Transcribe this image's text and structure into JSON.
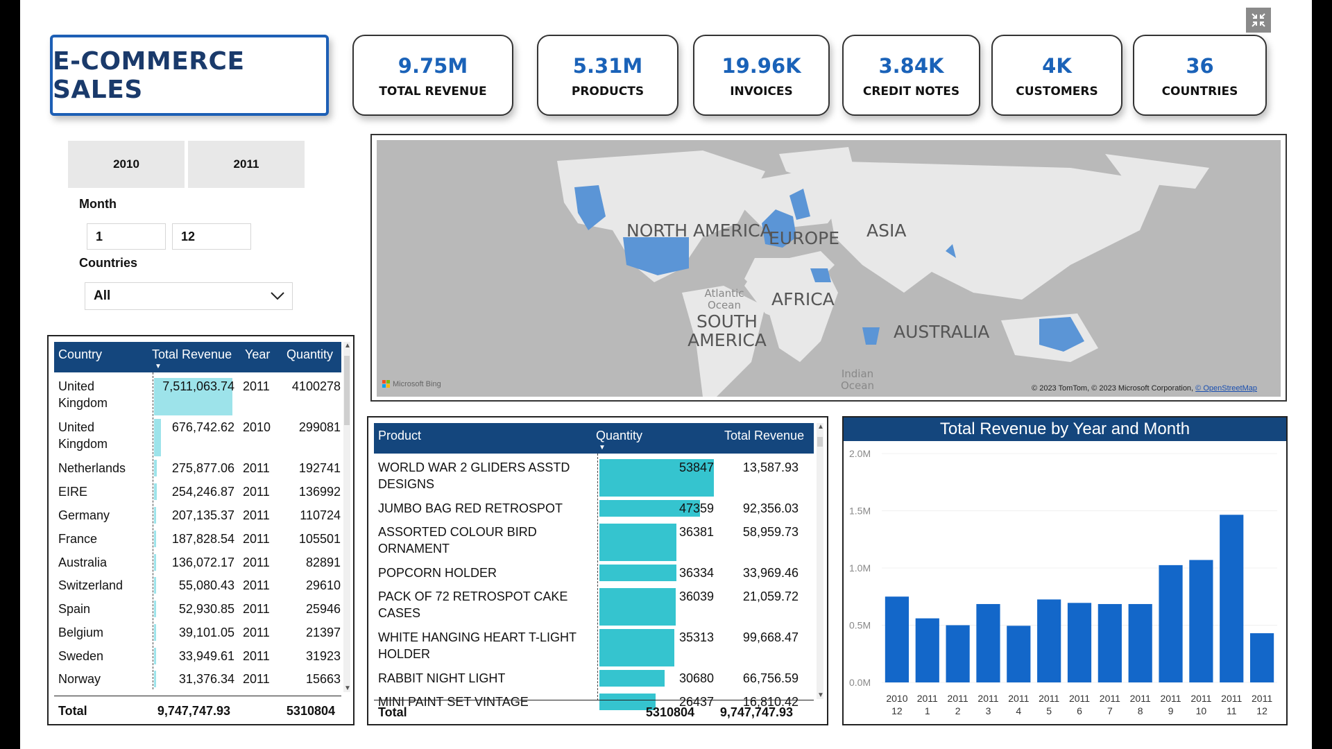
{
  "title": "E-COMMERCE SALES",
  "kpis": [
    {
      "value": "9.75M",
      "label": "TOTAL REVENUE"
    },
    {
      "value": "5.31M",
      "label": "PRODUCTS"
    },
    {
      "value": "19.96K",
      "label": "INVOICES"
    },
    {
      "value": "3.84K",
      "label": "CREDIT NOTES"
    },
    {
      "value": "4K",
      "label": "CUSTOMERS"
    },
    {
      "value": "36",
      "label": "COUNTRIES"
    }
  ],
  "filters": {
    "years": [
      "2010",
      "2011"
    ],
    "month_label": "Month",
    "month_from": "1",
    "month_to": "12",
    "countries_label": "Countries",
    "countries_value": "All"
  },
  "country_table": {
    "headers": [
      "Country",
      "Total Revenue",
      "Year",
      "Quantity"
    ],
    "rows": [
      {
        "country": "United Kingdom",
        "revenue": "7,511,063.74",
        "revenue_num": 7511063.74,
        "year": "2011",
        "quantity": "4100278"
      },
      {
        "country": "United Kingdom",
        "revenue": "676,742.62",
        "revenue_num": 676742.62,
        "year": "2010",
        "quantity": "299081"
      },
      {
        "country": "Netherlands",
        "revenue": "275,877.06",
        "revenue_num": 275877.06,
        "year": "2011",
        "quantity": "192741"
      },
      {
        "country": "EIRE",
        "revenue": "254,246.87",
        "revenue_num": 254246.87,
        "year": "2011",
        "quantity": "136992"
      },
      {
        "country": "Germany",
        "revenue": "207,135.37",
        "revenue_num": 207135.37,
        "year": "2011",
        "quantity": "110724"
      },
      {
        "country": "France",
        "revenue": "187,828.54",
        "revenue_num": 187828.54,
        "year": "2011",
        "quantity": "105501"
      },
      {
        "country": "Australia",
        "revenue": "136,072.17",
        "revenue_num": 136072.17,
        "year": "2011",
        "quantity": "82891"
      },
      {
        "country": "Switzerland",
        "revenue": "55,080.43",
        "revenue_num": 55080.43,
        "year": "2011",
        "quantity": "29610"
      },
      {
        "country": "Spain",
        "revenue": "52,930.85",
        "revenue_num": 52930.85,
        "year": "2011",
        "quantity": "25946"
      },
      {
        "country": "Belgium",
        "revenue": "39,101.05",
        "revenue_num": 39101.05,
        "year": "2011",
        "quantity": "21397"
      },
      {
        "country": "Sweden",
        "revenue": "33,949.61",
        "revenue_num": 33949.61,
        "year": "2011",
        "quantity": "31923"
      },
      {
        "country": "Norway",
        "revenue": "31,376.34",
        "revenue_num": 31376.34,
        "year": "2011",
        "quantity": "15663"
      }
    ],
    "total": {
      "label": "Total",
      "revenue": "9,747,747.93",
      "quantity": "5310804"
    }
  },
  "map": {
    "continents": [
      "NORTH AMERICA",
      "EUROPE",
      "ASIA",
      "AFRICA",
      "SOUTH AMERICA",
      "AUSTRALIA"
    ],
    "oceans": [
      "Atlantic Ocean",
      "Indian Ocean"
    ],
    "logo": "Microsoft Bing",
    "attribution_prefix": "© 2023 TomTom, © 2023 Microsoft Corporation, ",
    "attribution_link": "© OpenStreetMap"
  },
  "product_table": {
    "headers": [
      "Product",
      "Quantity",
      "Total Revenue"
    ],
    "rows": [
      {
        "product": "WORLD WAR 2 GLIDERS ASSTD DESIGNS",
        "quantity": "53847",
        "quantity_num": 53847,
        "revenue": "13,587.93"
      },
      {
        "product": "JUMBO BAG RED RETROSPOT",
        "quantity": "47359",
        "quantity_num": 47359,
        "revenue": "92,356.03"
      },
      {
        "product": "ASSORTED COLOUR BIRD ORNAMENT",
        "quantity": "36381",
        "quantity_num": 36381,
        "revenue": "58,959.73"
      },
      {
        "product": "POPCORN HOLDER",
        "quantity": "36334",
        "quantity_num": 36334,
        "revenue": "33,969.46"
      },
      {
        "product": "PACK OF 72 RETROSPOT CAKE CASES",
        "quantity": "36039",
        "quantity_num": 36039,
        "revenue": "21,059.72"
      },
      {
        "product": "WHITE HANGING HEART T-LIGHT HOLDER",
        "quantity": "35313",
        "quantity_num": 35313,
        "revenue": "99,668.47"
      },
      {
        "product": "RABBIT NIGHT LIGHT",
        "quantity": "30680",
        "quantity_num": 30680,
        "revenue": "66,756.59"
      },
      {
        "product": "MINI PAINT SET VINTAGE",
        "quantity": "26437",
        "quantity_num": 26437,
        "revenue": "16,810.42"
      }
    ],
    "total": {
      "label": "Total",
      "quantity": "5310804",
      "revenue": "9,747,747.93"
    }
  },
  "chart_data": {
    "type": "bar",
    "title": "Total Revenue by Year and Month",
    "categories": [
      "2010 12",
      "2011 1",
      "2011 2",
      "2011 3",
      "2011 4",
      "2011 5",
      "2011 6",
      "2011 7",
      "2011 8",
      "2011 9",
      "2011 10",
      "2011 11",
      "2011 12"
    ],
    "category_years": [
      "2010",
      "2011",
      "2011",
      "2011",
      "2011",
      "2011",
      "2011",
      "2011",
      "2011",
      "2011",
      "2011",
      "2011",
      "2011"
    ],
    "category_months": [
      "12",
      "1",
      "2",
      "3",
      "4",
      "5",
      "6",
      "7",
      "8",
      "9",
      "10",
      "11",
      "12"
    ],
    "values": [
      750000,
      560000,
      500000,
      685000,
      495000,
      725000,
      695000,
      685000,
      685000,
      1025000,
      1070000,
      1465000,
      430000
    ],
    "yticks": [
      0,
      500000,
      1000000,
      1500000,
      2000000
    ],
    "ytick_labels": [
      "0.0M",
      "0.5M",
      "1.0M",
      "1.5M",
      "2.0M"
    ],
    "ylim": [
      0,
      2000000
    ],
    "bar_color": "#1367c9",
    "xlabel": "",
    "ylabel": ""
  },
  "colors": {
    "header_bg": "#14467d",
    "accent": "#1a62b8",
    "country_bar": "#9de3ea",
    "product_bar": "#35c4cf",
    "map_highlight": "#5b95d6"
  }
}
